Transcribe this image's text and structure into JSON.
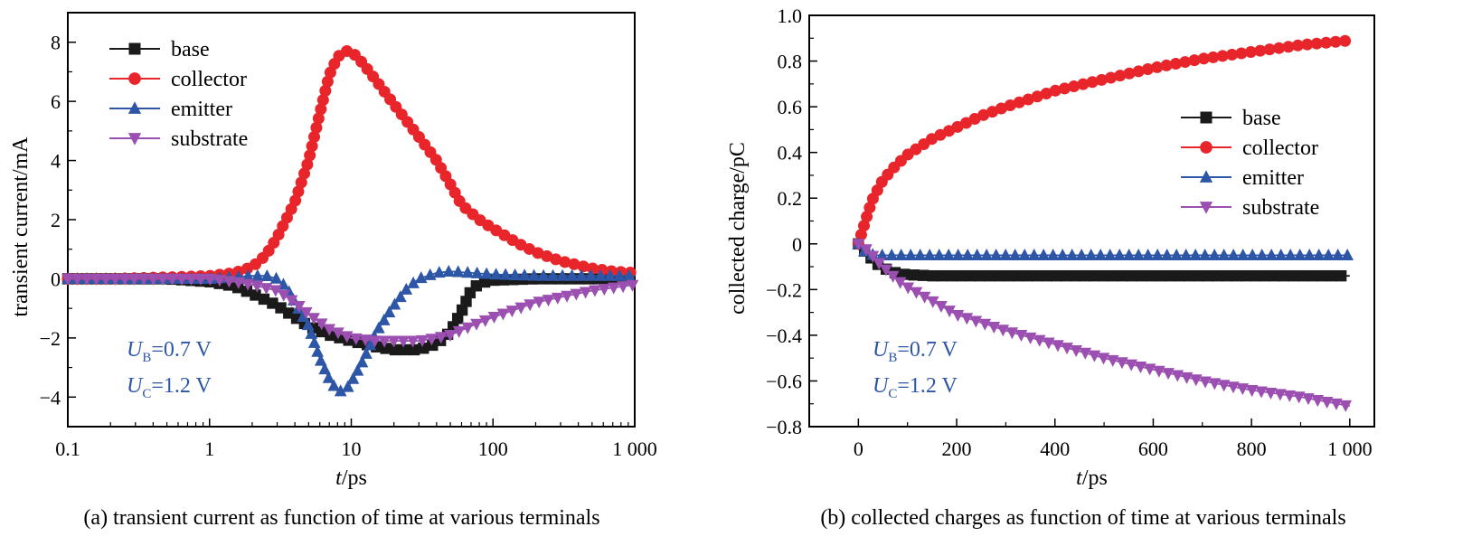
{
  "colors": {
    "base": "#1a1a1a",
    "collector": "#e8252a",
    "emitter": "#2e56a6",
    "substrate": "#9b4fb0",
    "annotation": "#2e56a6"
  },
  "chart_data": [
    {
      "id": "a",
      "type": "line",
      "xscale": "log",
      "xlim": [
        0.1,
        1000
      ],
      "ylim": [
        -5,
        9
      ],
      "xlabel_italic": "t",
      "xlabel_rest": "/ps",
      "ylabel": "transient current/mA",
      "xticks": [
        {
          "v": 0.1,
          "label": "0.1"
        },
        {
          "v": 1,
          "label": "1"
        },
        {
          "v": 10,
          "label": "10"
        },
        {
          "v": 100,
          "label": "100"
        },
        {
          "v": 1000,
          "label": "1 000"
        }
      ],
      "yticks": [
        {
          "v": -4,
          "label": "−4"
        },
        {
          "v": -2,
          "label": "−2"
        },
        {
          "v": 0,
          "label": "0"
        },
        {
          "v": 2,
          "label": "2"
        },
        {
          "v": 4,
          "label": "4"
        },
        {
          "v": 6,
          "label": "6"
        },
        {
          "v": 8,
          "label": "8"
        }
      ],
      "legend_position": "top-left",
      "annotations": [
        {
          "main": "U",
          "sub": "B",
          "rest": "=0.7 V"
        },
        {
          "main": "U",
          "sub": "C",
          "rest": "=1.2 V"
        }
      ],
      "caption": "(a) transient current as function of time at various terminals",
      "series": [
        {
          "name": "base",
          "marker": "square",
          "color": "#1a1a1a",
          "x": [
            0.1,
            0.2,
            0.5,
            1,
            1.5,
            2,
            3,
            4,
            5,
            7,
            10,
            15,
            20,
            30,
            40,
            50,
            60,
            70,
            80,
            100,
            200,
            500,
            1000
          ],
          "y": [
            0,
            0,
            0,
            -0.1,
            -0.25,
            -0.5,
            -0.9,
            -1.3,
            -1.6,
            -1.9,
            -2.1,
            -2.3,
            -2.4,
            -2.4,
            -2.2,
            -1.8,
            -1.1,
            -0.4,
            -0.15,
            -0.05,
            0,
            0,
            0
          ]
        },
        {
          "name": "collector",
          "marker": "circle",
          "color": "#e8252a",
          "x": [
            0.1,
            0.2,
            0.5,
            1,
            1.5,
            2,
            2.5,
            3,
            4,
            5,
            6,
            7,
            8,
            9,
            10,
            12,
            15,
            20,
            30,
            40,
            50,
            60,
            80,
            100,
            150,
            200,
            300,
            500,
            700,
            1000
          ],
          "y": [
            0,
            0,
            0.05,
            0.1,
            0.2,
            0.4,
            0.8,
            1.4,
            2.6,
            4.0,
            5.6,
            6.9,
            7.5,
            7.7,
            7.7,
            7.3,
            6.7,
            5.9,
            4.8,
            4.0,
            3.2,
            2.5,
            2.0,
            1.7,
            1.2,
            0.9,
            0.6,
            0.35,
            0.25,
            0.2
          ]
        },
        {
          "name": "emitter",
          "marker": "triangle-up",
          "color": "#2e56a6",
          "x": [
            0.1,
            0.2,
            0.5,
            1,
            2,
            2.5,
            3,
            3.5,
            4,
            5,
            6,
            7,
            8,
            9,
            10,
            12,
            15,
            20,
            25,
            30,
            40,
            50,
            70,
            100,
            200,
            500,
            1000
          ],
          "y": [
            0,
            0,
            0,
            0,
            0.1,
            0.1,
            0,
            -0.3,
            -0.8,
            -1.6,
            -2.7,
            -3.4,
            -3.8,
            -3.8,
            -3.5,
            -2.8,
            -1.8,
            -0.9,
            -0.3,
            0,
            0.2,
            0.25,
            0.2,
            0.15,
            0.1,
            0.1,
            0.1
          ]
        },
        {
          "name": "substrate",
          "marker": "triangle-down",
          "color": "#9b4fb0",
          "x": [
            0.1,
            0.2,
            0.5,
            1,
            1.5,
            2,
            3,
            4,
            5,
            7,
            10,
            15,
            20,
            30,
            40,
            50,
            70,
            100,
            200,
            500,
            1000
          ],
          "y": [
            0,
            0,
            0,
            0,
            -0.1,
            -0.2,
            -0.4,
            -0.8,
            -1.2,
            -1.7,
            -2.0,
            -2.1,
            -2.1,
            -2.1,
            -2.0,
            -1.9,
            -1.6,
            -1.3,
            -0.8,
            -0.4,
            -0.2
          ]
        }
      ]
    },
    {
      "id": "b",
      "type": "line",
      "xscale": "linear",
      "xlim": [
        -100,
        1050
      ],
      "ylim": [
        -0.8,
        1.0
      ],
      "xlabel_italic": "t",
      "xlabel_rest": "/ps",
      "ylabel": "collected charge/pC",
      "xticks": [
        {
          "v": 0,
          "label": "0"
        },
        {
          "v": 200,
          "label": "200"
        },
        {
          "v": 400,
          "label": "400"
        },
        {
          "v": 600,
          "label": "600"
        },
        {
          "v": 800,
          "label": "800"
        },
        {
          "v": 1000,
          "label": "1 000"
        }
      ],
      "yticks": [
        {
          "v": -0.8,
          "label": "−0.8"
        },
        {
          "v": -0.6,
          "label": "−0.6"
        },
        {
          "v": -0.4,
          "label": "−0.4"
        },
        {
          "v": -0.2,
          "label": "−0.2"
        },
        {
          "v": 0,
          "label": "0"
        },
        {
          "v": 0.2,
          "label": "0.2"
        },
        {
          "v": 0.4,
          "label": "0.4"
        },
        {
          "v": 0.6,
          "label": "0.6"
        },
        {
          "v": 0.8,
          "label": "0.8"
        },
        {
          "v": 1.0,
          "label": "1.0"
        }
      ],
      "legend_position": "top-right",
      "annotations": [
        {
          "main": "U",
          "sub": "B",
          "rest": "=0.7 V"
        },
        {
          "main": "U",
          "sub": "C",
          "rest": "=1.2 V"
        }
      ],
      "caption": "(b) collected charges as function of time at various terminals",
      "series": [
        {
          "name": "base",
          "marker": "square",
          "color": "#1a1a1a",
          "x": [
            0,
            20,
            40,
            60,
            80,
            100,
            150,
            200,
            300,
            400,
            500,
            600,
            700,
            800,
            900,
            1000
          ],
          "y": [
            0,
            -0.05,
            -0.09,
            -0.115,
            -0.13,
            -0.135,
            -0.14,
            -0.14,
            -0.14,
            -0.14,
            -0.14,
            -0.14,
            -0.14,
            -0.14,
            -0.14,
            -0.14
          ]
        },
        {
          "name": "collector",
          "marker": "circle",
          "color": "#e8252a",
          "x": [
            0,
            10,
            20,
            30,
            50,
            75,
            100,
            150,
            200,
            250,
            300,
            400,
            500,
            600,
            700,
            800,
            900,
            1000
          ],
          "y": [
            0,
            0.07,
            0.14,
            0.2,
            0.28,
            0.34,
            0.39,
            0.46,
            0.51,
            0.56,
            0.6,
            0.67,
            0.72,
            0.77,
            0.81,
            0.84,
            0.87,
            0.89
          ]
        },
        {
          "name": "emitter",
          "marker": "triangle-up",
          "color": "#2e56a6",
          "x": [
            0,
            10,
            20,
            40,
            60,
            100,
            200,
            300,
            400,
            500,
            600,
            700,
            800,
            900,
            1000
          ],
          "y": [
            0,
            -0.03,
            -0.045,
            -0.05,
            -0.05,
            -0.05,
            -0.05,
            -0.05,
            -0.05,
            -0.05,
            -0.05,
            -0.05,
            -0.05,
            -0.05,
            -0.05
          ]
        },
        {
          "name": "substrate",
          "marker": "triangle-down",
          "color": "#9b4fb0",
          "x": [
            0,
            20,
            40,
            60,
            80,
            100,
            150,
            200,
            300,
            400,
            500,
            600,
            700,
            800,
            900,
            1000
          ],
          "y": [
            0,
            -0.03,
            -0.08,
            -0.12,
            -0.16,
            -0.19,
            -0.25,
            -0.31,
            -0.38,
            -0.44,
            -0.5,
            -0.55,
            -0.6,
            -0.64,
            -0.67,
            -0.71
          ]
        }
      ]
    }
  ]
}
